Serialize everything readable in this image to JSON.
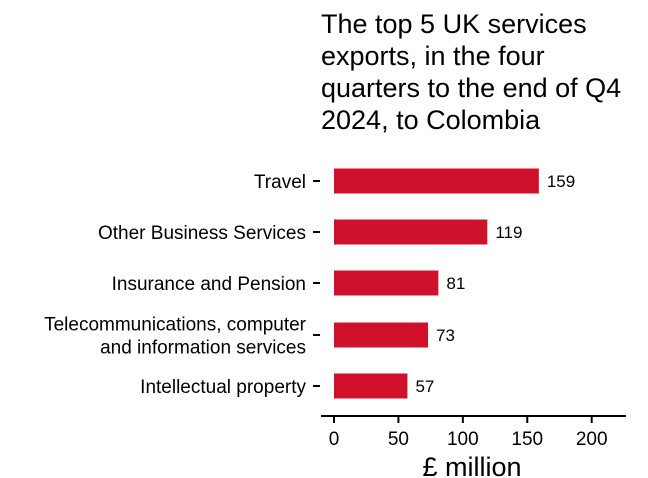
{
  "chart_data": {
    "type": "bar",
    "orientation": "horizontal",
    "title_lines": [
      "The top 5 UK services",
      "exports, in the four",
      "quarters to the end of Q4",
      "2024, to Colombia"
    ],
    "categories": [
      [
        "Travel"
      ],
      [
        "Other Business Services"
      ],
      [
        "Insurance and Pension"
      ],
      [
        "Telecommunications, computer",
        "and information services"
      ],
      [
        "Intellectual property"
      ]
    ],
    "values": [
      159,
      119,
      81,
      73,
      57
    ],
    "data_labels": [
      "159",
      "119",
      "81",
      "73",
      "57"
    ],
    "xlabel": "£ million",
    "ylabel": "",
    "xlim": [
      0,
      225
    ],
    "xticks": [
      0,
      50,
      100,
      150,
      200
    ],
    "xtick_labels": [
      "0",
      "50",
      "100",
      "150",
      "200"
    ],
    "grid": false,
    "bar_color": "#d0112b"
  }
}
